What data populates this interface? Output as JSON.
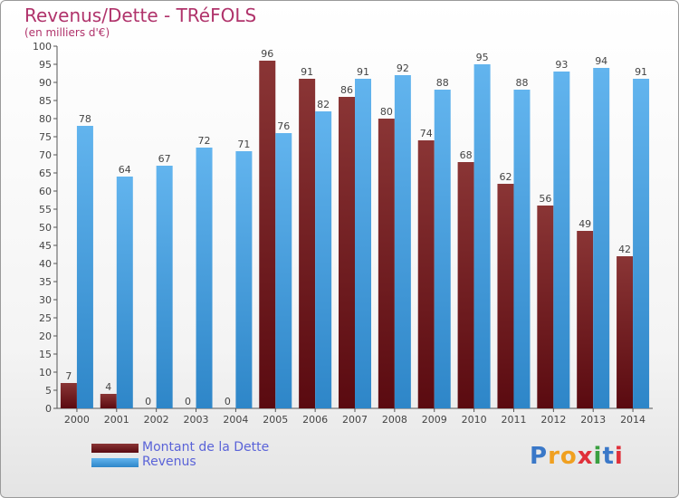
{
  "header": {
    "title": "Revenus/Dette - TRéFOLS",
    "subtitle": "(en milliers d'€)"
  },
  "colors": {
    "dette_dark": "#5a0a10",
    "dette_light": "#8a3535",
    "revenus_dark": "#2e86c8",
    "revenus_light": "#62b4ee"
  },
  "chart_data": {
    "type": "bar",
    "categories": [
      "2000",
      "2001",
      "2002",
      "2003",
      "2004",
      "2005",
      "2006",
      "2007",
      "2008",
      "2009",
      "2010",
      "2011",
      "2012",
      "2013",
      "2014"
    ],
    "series": [
      {
        "name": "Montant de la Dette",
        "values": [
          7,
          4,
          0,
          0,
          0,
          96,
          91,
          86,
          80,
          74,
          68,
          62,
          56,
          49,
          42
        ]
      },
      {
        "name": "Revenus",
        "values": [
          78,
          64,
          67,
          72,
          71,
          76,
          82,
          91,
          92,
          88,
          95,
          88,
          93,
          94,
          91
        ]
      }
    ],
    "ylim": [
      0,
      100
    ],
    "yticks": [
      0,
      5,
      10,
      15,
      20,
      25,
      30,
      35,
      40,
      45,
      50,
      55,
      60,
      65,
      70,
      75,
      80,
      85,
      90,
      95,
      100
    ],
    "grid": false,
    "legend_position": "bottom-left"
  },
  "legend": {
    "items": [
      {
        "label": "Montant de la Dette"
      },
      {
        "label": "Revenus"
      }
    ]
  },
  "logo": {
    "letters": [
      "P",
      "r",
      "o",
      "x",
      "i",
      "t",
      "i"
    ],
    "letter_colors": [
      "#3a78c8",
      "#f0a020",
      "#f0a020",
      "#e0303a",
      "#3aa040",
      "#3a78c8",
      "#e0303a"
    ]
  }
}
